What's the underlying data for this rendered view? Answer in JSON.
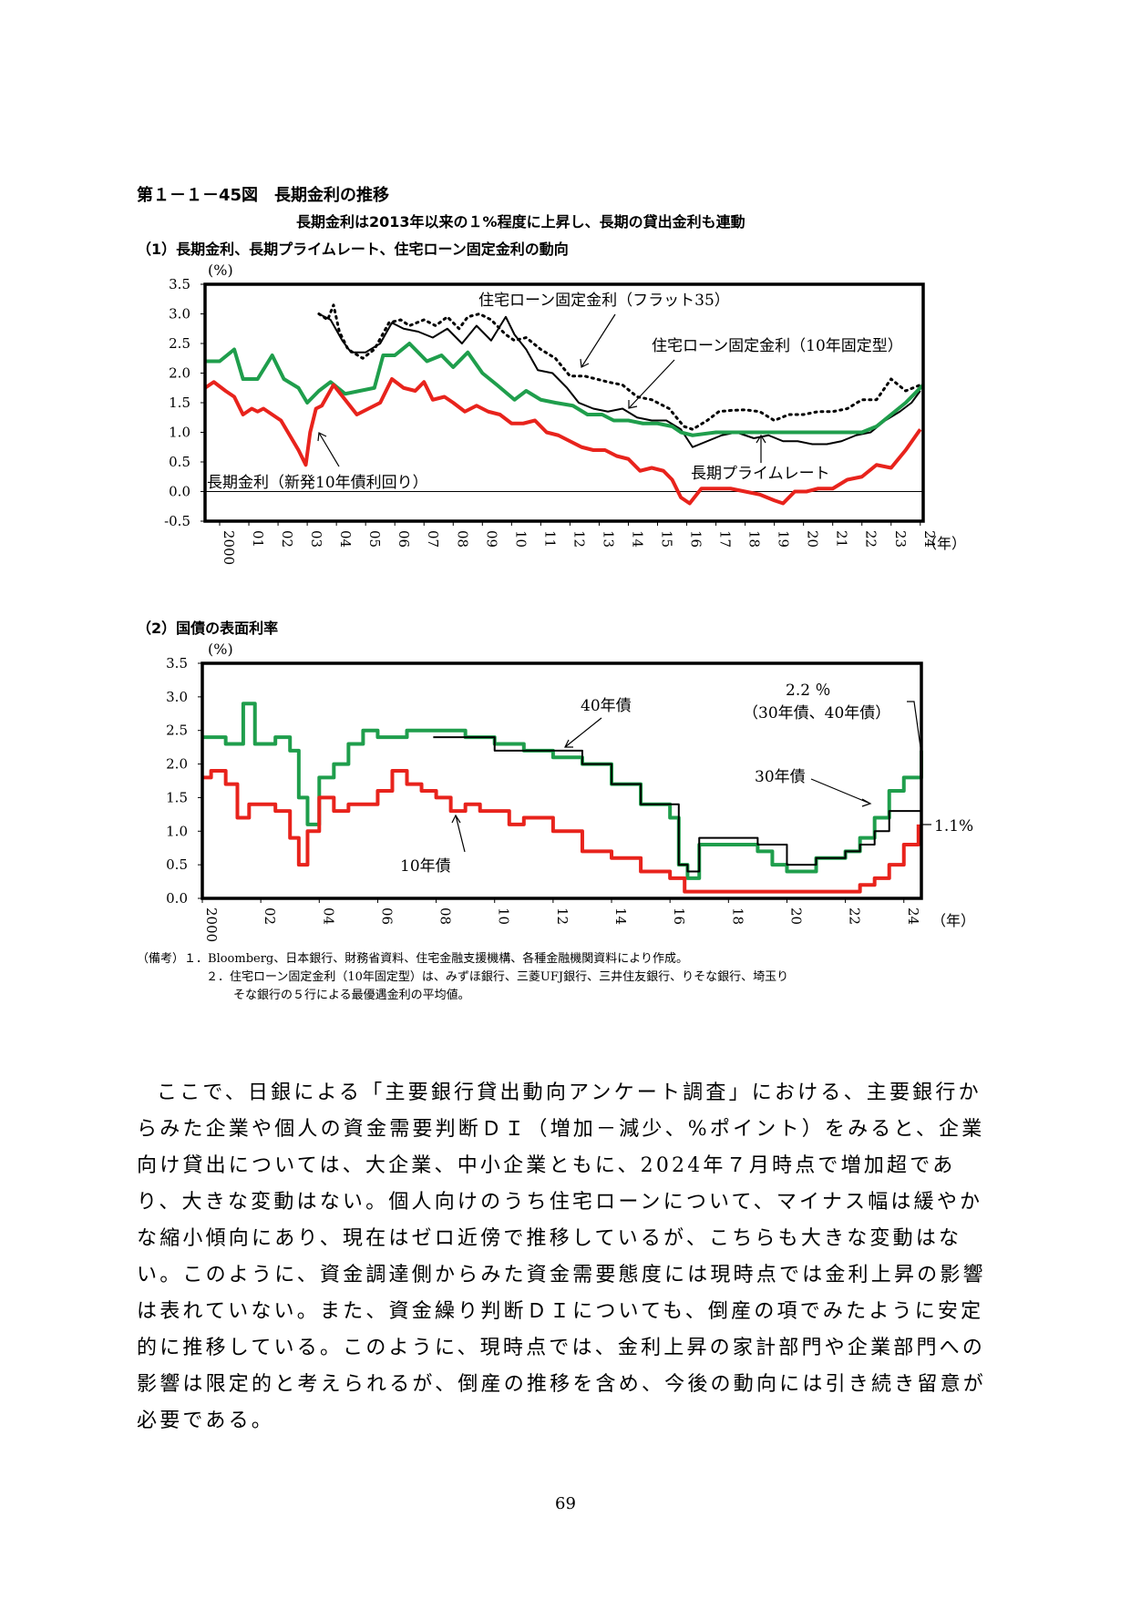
{
  "figure": {
    "title": "第１－１－45図　長期金利の推移",
    "subtitle": "長期金利は2013年以来の１%程度に上昇し、長期の貸出金利も連動"
  },
  "panel1": {
    "title": "（1）長期金利、長期プライムレート、住宅ローン固定金利の動向",
    "unit": "(%)",
    "x_unit": "（年）",
    "annotations": {
      "flat35": "住宅ローン固定金利（フラット35）",
      "fixed10": "住宅ローン固定金利（10年固定型）",
      "jgb10": "長期金利（新発10年債利回り）",
      "prime": "長期プライムレート"
    }
  },
  "panel2": {
    "title": "（2）国債の表面利率",
    "unit": "(%)",
    "x_unit": "（年）",
    "annotations": {
      "y40": "40年債",
      "y30": "30年債",
      "y10": "10年債",
      "val_22": "2.2 ％",
      "val_22_sub": "（30年債、40年債）",
      "val_11": "1.1%"
    }
  },
  "notes": {
    "label": "（備考）",
    "n1": "１．Bloomberg、日本銀行、財務省資料、住宅金融支援機構、各種金融機関資料により作成。",
    "n2a": "２．住宅ローン固定金利（10年固定型）は、みずほ銀行、三菱UFJ銀行、三井住友銀行、りそな銀行、埼玉り",
    "n2b": "そな銀行の５行による最優遇金利の平均値。"
  },
  "body": {
    "paragraph": "ここで、日銀による「主要銀行貸出動向アンケート調査」における、主要銀行からみた企業や個人の資金需要判断ＤＩ（増加－減少、%ポイント）をみると、企業向け貸出については、大企業、中小企業ともに、2024年７月時点で増加超であり、大きな変動はない。個人向けのうち住宅ローンについて、マイナス幅は緩やかな縮小傾向にあり、現在はゼロ近傍で推移しているが、こちらも大きな変動はない。このように、資金調達側からみた資金需要態度には現時点では金利上昇の影響は表れていない。また、資金繰り判断ＤＩについても、倒産の項でみたように安定的に推移している。このように、現時点では、金利上昇の家計部門や企業部門への影響は限定的と考えられるが、倒産の推移を含め、今後の動向には引き続き留意が必要である。"
  },
  "page_number": "69",
  "chart_data": [
    {
      "type": "line",
      "title": "（1）長期金利、長期プライムレート、住宅ローン固定金利の動向",
      "ylabel": "(%)",
      "xlabel": "（年）",
      "ylim": [
        -0.5,
        3.5
      ],
      "yticks": [
        "3.5",
        "3.0",
        "2.5",
        "2.0",
        "1.5",
        "1.0",
        "0.5",
        "0.0",
        "-0.5"
      ],
      "xticks": [
        "2000",
        "01",
        "02",
        "03",
        "04",
        "05",
        "06",
        "07",
        "08",
        "09",
        "10",
        "11",
        "12",
        "13",
        "14",
        "15",
        "16",
        "17",
        "18",
        "19",
        "20",
        "21",
        "22",
        "23",
        "24"
      ],
      "xlim": [
        2000,
        2024.6
      ],
      "series": [
        {
          "name": "住宅ローン固定金利（フラット35）",
          "color": "#000000",
          "style": "dotted",
          "x": [
            2003.9,
            2004.2,
            2004.4,
            2004.6,
            2004.9,
            2005.4,
            2005.8,
            2006.3,
            2006.7,
            2007.0,
            2007.5,
            2007.9,
            2008.3,
            2008.7,
            2009.0,
            2009.4,
            2009.8,
            2010.3,
            2010.6,
            2011.0,
            2011.5,
            2012.0,
            2012.5,
            2013.0,
            2013.4,
            2013.8,
            2014.3,
            2014.8,
            2015.3,
            2015.9,
            2016.4,
            2016.7,
            2017.2,
            2017.6,
            2018.0,
            2018.5,
            2019.0,
            2019.5,
            2020.0,
            2020.5,
            2021.0,
            2021.5,
            2022.0,
            2022.5,
            2023.0,
            2023.5,
            2024.0,
            2024.5
          ],
          "y": [
            3.0,
            2.9,
            3.15,
            2.7,
            2.4,
            2.25,
            2.4,
            2.85,
            2.9,
            2.8,
            2.9,
            2.8,
            2.95,
            2.75,
            2.95,
            3.0,
            2.9,
            2.65,
            2.55,
            2.6,
            2.4,
            2.25,
            1.95,
            1.95,
            1.9,
            1.85,
            1.8,
            1.6,
            1.55,
            1.4,
            1.1,
            1.05,
            1.2,
            1.35,
            1.37,
            1.38,
            1.35,
            1.2,
            1.3,
            1.3,
            1.35,
            1.35,
            1.4,
            1.55,
            1.55,
            1.9,
            1.7,
            1.8
          ]
        },
        {
          "name": "住宅ローン固定金利（10年固定型）",
          "color": "#000000",
          "style": "solid",
          "x": [
            2003.9,
            2004.3,
            2004.7,
            2005.0,
            2005.5,
            2006.0,
            2006.4,
            2006.8,
            2007.3,
            2007.8,
            2008.3,
            2008.8,
            2009.3,
            2009.8,
            2010.3,
            2010.6,
            2011.0,
            2011.4,
            2011.9,
            2012.4,
            2012.8,
            2013.3,
            2013.8,
            2014.3,
            2014.8,
            2015.3,
            2015.8,
            2016.3,
            2016.7,
            2017.2,
            2017.7,
            2018.2,
            2018.8,
            2019.3,
            2019.8,
            2020.3,
            2020.8,
            2021.3,
            2021.8,
            2022.3,
            2022.8,
            2023.3,
            2023.8,
            2024.2,
            2024.5
          ],
          "y": [
            3.0,
            2.9,
            2.55,
            2.35,
            2.35,
            2.5,
            2.85,
            2.75,
            2.7,
            2.6,
            2.75,
            2.5,
            2.8,
            2.55,
            2.95,
            2.65,
            2.4,
            2.05,
            2.0,
            1.75,
            1.5,
            1.4,
            1.35,
            1.4,
            1.25,
            1.2,
            1.2,
            1.05,
            0.75,
            0.85,
            0.95,
            1.0,
            0.9,
            0.95,
            0.85,
            0.85,
            0.8,
            0.8,
            0.85,
            0.95,
            1.0,
            1.2,
            1.35,
            1.5,
            1.7
          ]
        },
        {
          "name": "長期プライムレート",
          "color": "#1f9e4c",
          "style": "solid",
          "x": [
            2000.0,
            2000.5,
            2001.0,
            2001.3,
            2001.8,
            2002.3,
            2002.7,
            2003.2,
            2003.5,
            2003.9,
            2004.3,
            2004.8,
            2005.3,
            2005.8,
            2006.1,
            2006.5,
            2007.0,
            2007.6,
            2008.1,
            2008.5,
            2009.0,
            2009.5,
            2010.0,
            2010.6,
            2011.0,
            2011.5,
            2012.0,
            2012.6,
            2013.1,
            2013.6,
            2014.0,
            2014.5,
            2015.0,
            2015.5,
            2016.0,
            2016.3,
            2016.7,
            2017.5,
            2018.5,
            2019.5,
            2020.5,
            2021.5,
            2022.5,
            2023.0,
            2023.5,
            2024.0,
            2024.6
          ],
          "y": [
            2.2,
            2.2,
            2.4,
            1.9,
            1.9,
            2.3,
            1.9,
            1.75,
            1.5,
            1.7,
            1.85,
            1.65,
            1.7,
            1.75,
            2.3,
            2.3,
            2.5,
            2.2,
            2.3,
            2.1,
            2.35,
            2.0,
            1.8,
            1.55,
            1.7,
            1.55,
            1.5,
            1.45,
            1.3,
            1.3,
            1.2,
            1.2,
            1.15,
            1.15,
            1.1,
            1.0,
            0.95,
            1.0,
            1.0,
            1.0,
            1.0,
            1.0,
            1.0,
            1.1,
            1.3,
            1.5,
            1.8
          ]
        },
        {
          "name": "長期金利（新発10年債利回り）",
          "color": "#e8231c",
          "style": "solid",
          "x": [
            2000.0,
            2000.3,
            2000.7,
            2001.0,
            2001.3,
            2001.6,
            2001.8,
            2002.0,
            2002.3,
            2002.6,
            2002.9,
            2003.2,
            2003.45,
            2003.6,
            2003.8,
            2004.0,
            2004.4,
            2004.8,
            2005.2,
            2005.6,
            2006.0,
            2006.4,
            2006.8,
            2007.2,
            2007.5,
            2007.8,
            2008.2,
            2008.5,
            2008.9,
            2009.3,
            2009.7,
            2010.1,
            2010.5,
            2010.9,
            2011.3,
            2011.7,
            2012.1,
            2012.5,
            2012.9,
            2013.3,
            2013.7,
            2014.1,
            2014.5,
            2014.9,
            2015.3,
            2015.7,
            2016.0,
            2016.3,
            2016.6,
            2017.0,
            2017.5,
            2018.0,
            2018.5,
            2019.0,
            2019.5,
            2019.8,
            2020.2,
            2020.6,
            2021.0,
            2021.5,
            2022.0,
            2022.5,
            2023.0,
            2023.5,
            2024.0,
            2024.5
          ],
          "y": [
            1.75,
            1.85,
            1.7,
            1.6,
            1.3,
            1.4,
            1.35,
            1.4,
            1.3,
            1.2,
            0.95,
            0.7,
            0.45,
            1.0,
            1.4,
            1.45,
            1.8,
            1.55,
            1.3,
            1.4,
            1.5,
            1.9,
            1.75,
            1.7,
            1.85,
            1.55,
            1.6,
            1.5,
            1.35,
            1.45,
            1.35,
            1.3,
            1.15,
            1.15,
            1.2,
            1.0,
            0.95,
            0.85,
            0.75,
            0.7,
            0.7,
            0.6,
            0.55,
            0.35,
            0.4,
            0.35,
            0.2,
            -0.1,
            -0.2,
            0.05,
            0.05,
            0.05,
            0.0,
            -0.05,
            -0.15,
            -0.2,
            0.0,
            0.0,
            0.05,
            0.05,
            0.2,
            0.25,
            0.45,
            0.4,
            0.7,
            1.05
          ]
        }
      ]
    },
    {
      "type": "line",
      "title": "（2）国債の表面利率",
      "ylabel": "(%)",
      "xlabel": "（年）",
      "ylim": [
        0.0,
        3.5
      ],
      "yticks": [
        "3.5",
        "3.0",
        "2.5",
        "2.0",
        "1.5",
        "1.0",
        "0.5",
        "0.0"
      ],
      "xticks": [
        "2000",
        "02",
        "04",
        "06",
        "08",
        "10",
        "12",
        "14",
        "16",
        "18",
        "20",
        "22",
        "24"
      ],
      "xlim": [
        2000,
        2024.6
      ],
      "series": [
        {
          "name": "30年債",
          "color": "#1f9e4c",
          "style": "step",
          "x": [
            2000.0,
            2000.8,
            2001.4,
            2001.8,
            2002.5,
            2003.0,
            2003.3,
            2003.6,
            2004.0,
            2004.5,
            2005.0,
            2005.5,
            2006.0,
            2007.0,
            2008.0,
            2009.0,
            2010.0,
            2011.0,
            2012.0,
            2013.0,
            2014.0,
            2015.0,
            2016.0,
            2016.3,
            2016.6,
            2017.0,
            2018.0,
            2019.0,
            2019.5,
            2020.0,
            2021.0,
            2022.0,
            2022.5,
            2023.0,
            2023.5,
            2024.0,
            2024.6
          ],
          "y": [
            2.4,
            2.3,
            2.9,
            2.3,
            2.4,
            2.2,
            1.5,
            1.1,
            1.8,
            2.0,
            2.3,
            2.5,
            2.4,
            2.5,
            2.5,
            2.4,
            2.3,
            2.2,
            2.1,
            2.0,
            1.7,
            1.4,
            1.2,
            0.5,
            0.3,
            0.8,
            0.8,
            0.7,
            0.5,
            0.4,
            0.6,
            0.7,
            0.9,
            1.2,
            1.6,
            1.8,
            2.2
          ]
        },
        {
          "name": "40年債",
          "color": "#000000",
          "style": "step",
          "x": [
            2007.9,
            2009.0,
            2010.0,
            2011.0,
            2012.0,
            2013.0,
            2014.0,
            2015.0,
            2016.0,
            2016.3,
            2016.6,
            2017.0,
            2018.0,
            2019.0,
            2020.0,
            2021.0,
            2022.0,
            2022.5,
            2023.0,
            2023.5,
            2024.0,
            2024.6
          ],
          "y": [
            2.4,
            2.4,
            2.2,
            2.2,
            2.2,
            2.0,
            1.7,
            1.4,
            1.4,
            0.5,
            0.4,
            0.9,
            0.9,
            0.8,
            0.5,
            0.6,
            0.7,
            0.8,
            1.0,
            1.3,
            1.3,
            2.2
          ]
        },
        {
          "name": "10年債",
          "color": "#e8231c",
          "style": "step",
          "x": [
            2000.0,
            2000.3,
            2000.8,
            2001.2,
            2001.6,
            2002.0,
            2002.5,
            2003.0,
            2003.3,
            2003.6,
            2004.0,
            2004.5,
            2005.0,
            2005.5,
            2006.0,
            2006.5,
            2007.0,
            2007.5,
            2008.0,
            2008.5,
            2009.0,
            2009.5,
            2010.0,
            2010.5,
            2011.0,
            2012.0,
            2013.0,
            2014.0,
            2015.0,
            2016.0,
            2016.5,
            2017.0,
            2018.0,
            2019.0,
            2020.0,
            2021.0,
            2022.0,
            2022.5,
            2023.0,
            2023.5,
            2024.0,
            2024.5
          ],
          "y": [
            1.8,
            1.9,
            1.7,
            1.2,
            1.4,
            1.4,
            1.3,
            0.9,
            0.5,
            1.0,
            1.5,
            1.3,
            1.4,
            1.4,
            1.6,
            1.9,
            1.7,
            1.6,
            1.5,
            1.3,
            1.4,
            1.3,
            1.3,
            1.1,
            1.2,
            1.0,
            0.7,
            0.6,
            0.4,
            0.3,
            0.1,
            0.1,
            0.1,
            0.1,
            0.1,
            0.1,
            0.1,
            0.2,
            0.3,
            0.5,
            0.8,
            1.1
          ]
        }
      ]
    }
  ]
}
